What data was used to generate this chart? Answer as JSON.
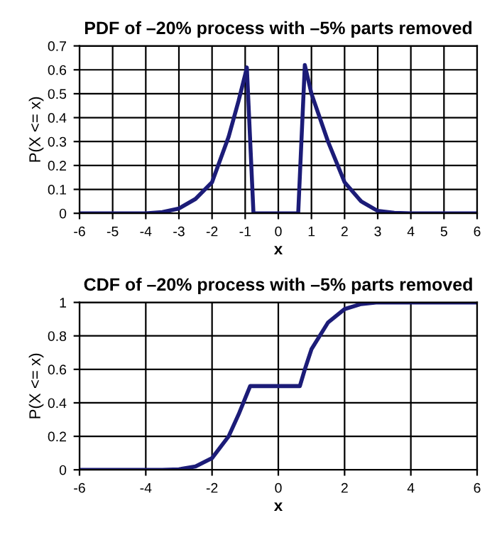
{
  "chart_data": [
    {
      "type": "line",
      "title": "PDF of –20% process with –5% parts removed",
      "xlabel": "x",
      "ylabel": "P(X <= x)",
      "series": [
        {
          "color": "#1c1c78",
          "x": [
            -6,
            -4,
            -3.5,
            -3,
            -2.5,
            -2,
            -1.5,
            -1.2,
            -1,
            -0.95,
            -0.75,
            0.6,
            0.8,
            1,
            1.5,
            2,
            2.5,
            3,
            3.5,
            4,
            6
          ],
          "values": [
            0,
            0,
            0.005,
            0.02,
            0.06,
            0.13,
            0.32,
            0.47,
            0.58,
            0.61,
            0,
            0,
            0.62,
            0.5,
            0.3,
            0.13,
            0.05,
            0.01,
            0.002,
            0,
            0
          ]
        }
      ],
      "xlim": [
        -6,
        6
      ],
      "xticks": [
        -6,
        -5,
        -4,
        -3,
        -2,
        -1,
        0,
        1,
        2,
        3,
        4,
        5,
        6
      ],
      "ylim": [
        0,
        0.7
      ],
      "yticks": [
        0,
        0.1,
        0.2,
        0.3,
        0.4,
        0.5,
        0.6,
        0.7
      ],
      "grid": true,
      "legend": false,
      "marker": "none",
      "line_style": "solid"
    },
    {
      "type": "line",
      "title": "CDF of –20% process with –5% parts removed",
      "xlabel": "x",
      "ylabel": "P(X <= x)",
      "series": [
        {
          "color": "#1c1c78",
          "x": [
            -6,
            -3.5,
            -3,
            -2.5,
            -2,
            -1.5,
            -1.2,
            -0.85,
            0.65,
            0.8,
            1,
            1.5,
            2,
            2.5,
            3,
            6
          ],
          "values": [
            0,
            0,
            0.003,
            0.02,
            0.07,
            0.2,
            0.33,
            0.5,
            0.5,
            0.6,
            0.72,
            0.88,
            0.96,
            0.99,
            1,
            1
          ]
        }
      ],
      "xlim": [
        -6,
        6
      ],
      "xticks": [
        -6,
        -4,
        -2,
        0,
        2,
        4,
        6
      ],
      "ylim": [
        0,
        1
      ],
      "yticks": [
        0,
        0.2,
        0.4,
        0.6,
        0.8,
        1
      ],
      "grid": true,
      "legend": false,
      "marker": "none",
      "line_style": "solid"
    }
  ]
}
